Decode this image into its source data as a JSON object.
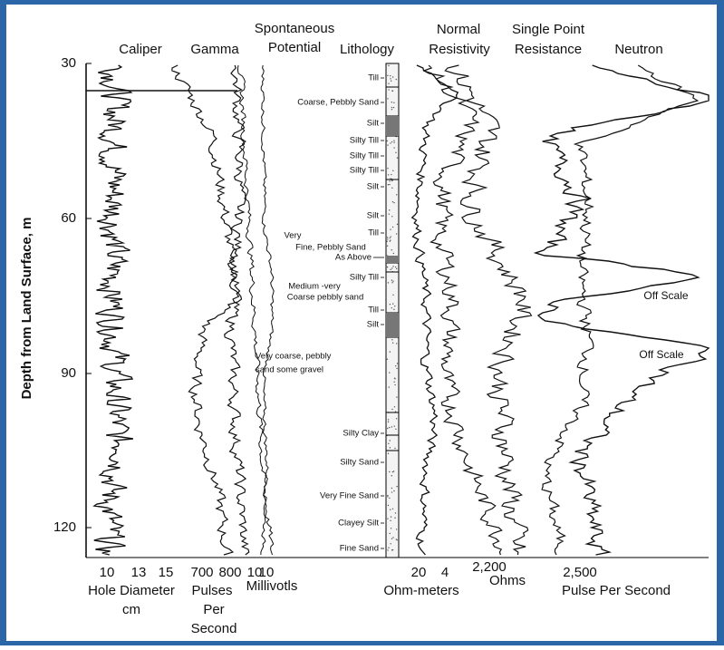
{
  "headers": [
    "Caliper",
    "Gamma",
    "Spontaneous",
    "Potential",
    "Lithology",
    "Normal",
    "Resistivity",
    "Single Point",
    "Resistance",
    "Neutron"
  ],
  "y_axis": {
    "title": "Depth from Land Surface, m",
    "ticks": [
      "30",
      "60",
      "90",
      "120"
    ]
  },
  "lithology_labels": [
    "Till",
    "Coarse, Pebbly Sand",
    "Silt",
    "Silty Till",
    "Silty Till",
    "Silty Till",
    "Silt",
    "Silt",
    "Till",
    "Very",
    "Fine, Pebbly Sand",
    "As Above",
    "Silty Till",
    "Medium -very",
    "Coarse pebbly sand",
    "Till",
    "Silt",
    "Very coarse, pebbly",
    "sand some gravel",
    "Silty Clay",
    "Silty Sand",
    "Very Fine Sand",
    "Clayey Silt",
    "Fine Sand"
  ],
  "notes": [
    "Off Scale",
    "Off Scale"
  ],
  "bottom_ticks": [
    "10",
    "13",
    "15",
    "700",
    "800",
    "10",
    "10",
    "20",
    "4",
    "2,200",
    "2,500"
  ],
  "bottom_labels": [
    "Hole Diameter",
    "cm",
    "Pulses",
    "Per",
    "Second",
    "Millivotls",
    "Ohm-meters",
    "Ohms",
    "Pulse Per Second"
  ]
}
